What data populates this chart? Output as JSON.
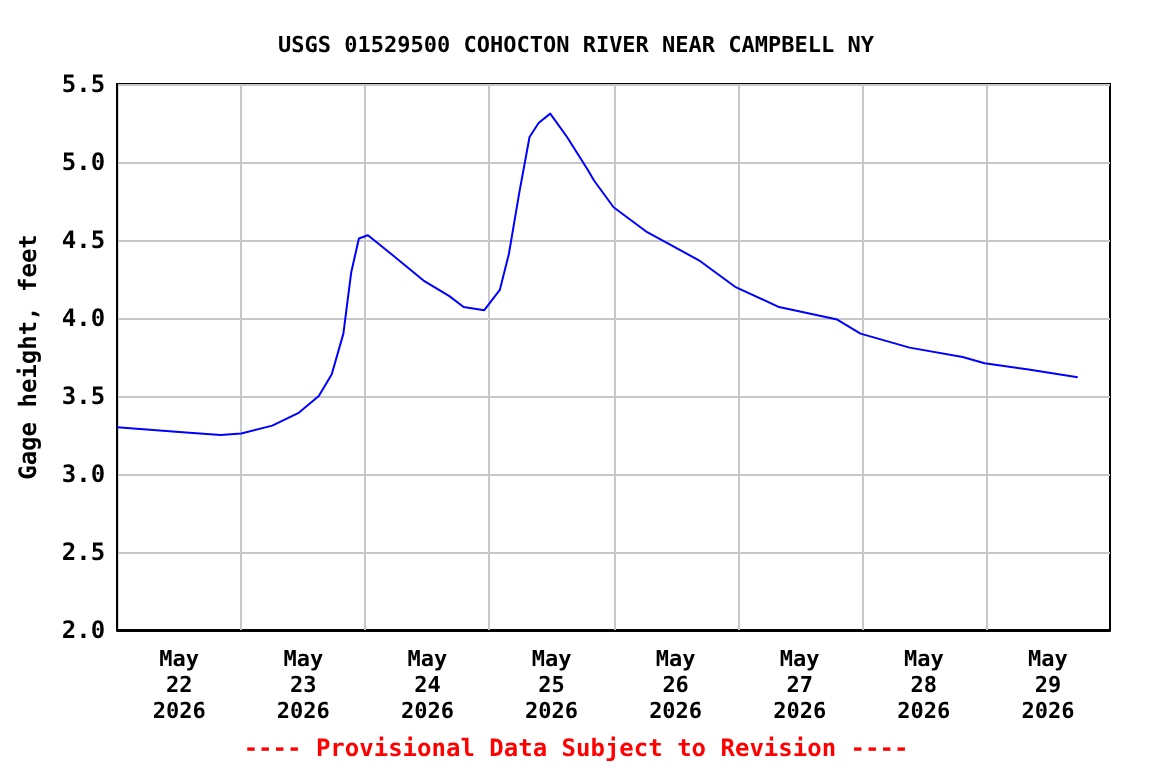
{
  "chart_data": {
    "type": "line",
    "title": "USGS 01529500 COHOCTON RIVER NEAR CAMPBELL NY",
    "ylabel": "Gage height, feet",
    "annotations": [
      "---- Provisional Data Subject to Revision ----"
    ],
    "x": [
      "2026-05-22T00:00",
      "2026-05-22T12:00",
      "2026-05-22T20:00",
      "2026-05-23T00:00",
      "2026-05-23T06:00",
      "2026-05-23T11:00",
      "2026-05-23T15:00",
      "2026-05-23T17:30",
      "2026-05-23T19:45",
      "2026-05-23T21:15",
      "2026-05-23T22:45",
      "2026-05-24T00:30",
      "2026-05-24T05:00",
      "2026-05-24T11:15",
      "2026-05-24T16:15",
      "2026-05-24T19:00",
      "2026-05-24T23:00",
      "2026-05-25T02:00",
      "2026-05-25T03:45",
      "2026-05-25T05:45",
      "2026-05-25T07:45",
      "2026-05-25T09:30",
      "2026-05-25T11:45",
      "2026-05-25T15:00",
      "2026-05-25T19:00",
      "2026-05-25T20:15",
      "2026-05-26T00:00",
      "2026-05-26T06:30",
      "2026-05-26T16:30",
      "2026-05-26T23:30",
      "2026-05-27T08:00",
      "2026-05-27T19:15",
      "2026-05-27T23:45",
      "2026-05-28T09:15",
      "2026-05-28T19:30",
      "2026-05-28T23:45",
      "2026-05-29T08:15",
      "2026-05-29T17:45"
    ],
    "series": [
      {
        "color": "#0000ff",
        "values": [
          3.3,
          3.27,
          3.25,
          3.26,
          3.31,
          3.39,
          3.5,
          3.64,
          3.9,
          4.29,
          4.51,
          4.53,
          4.41,
          4.24,
          4.14,
          4.07,
          4.05,
          4.18,
          4.41,
          4.8,
          5.16,
          5.25,
          5.31,
          5.16,
          4.95,
          4.88,
          4.71,
          4.55,
          4.37,
          4.2,
          4.07,
          3.99,
          3.9,
          3.81,
          3.75,
          3.71,
          3.67,
          3.62
        ]
      }
    ],
    "xlim": [
      "2026-05-22T00:00",
      "2026-05-30T00:00"
    ],
    "xticks": [
      {
        "value": "2026-05-22T12:00",
        "label": "May\n22\n2026"
      },
      {
        "value": "2026-05-23T00:00",
        "label": null
      },
      {
        "value": "2026-05-23T12:00",
        "label": "May\n23\n2026"
      },
      {
        "value": "2026-05-24T00:00",
        "label": null
      },
      {
        "value": "2026-05-24T12:00",
        "label": "May\n24\n2026"
      },
      {
        "value": "2026-05-25T00:00",
        "label": null
      },
      {
        "value": "2026-05-25T12:00",
        "label": "May\n25\n2026"
      },
      {
        "value": "2026-05-26T00:00",
        "label": null
      },
      {
        "value": "2026-05-26T12:00",
        "label": "May\n26\n2026"
      },
      {
        "value": "2026-05-27T00:00",
        "label": null
      },
      {
        "value": "2026-05-27T12:00",
        "label": "May\n27\n2026"
      },
      {
        "value": "2026-05-28T00:00",
        "label": null
      },
      {
        "value": "2026-05-28T12:00",
        "label": "May\n28\n2026"
      },
      {
        "value": "2026-05-29T00:00",
        "label": null
      },
      {
        "value": "2026-05-29T12:00",
        "label": "May\n29\n2026"
      }
    ],
    "ylim": [
      2.0,
      5.5
    ],
    "yticks": [
      {
        "value": 2.0,
        "label": "2.0"
      },
      {
        "value": 2.5,
        "label": "2.5"
      },
      {
        "value": 3.0,
        "label": "3.0"
      },
      {
        "value": 3.5,
        "label": "3.5"
      },
      {
        "value": 4.0,
        "label": "4.0"
      },
      {
        "value": 4.5,
        "label": "4.5"
      },
      {
        "value": 5.0,
        "label": "5.0"
      },
      {
        "value": 5.5,
        "label": "5.5"
      }
    ],
    "grid": true,
    "marker": "none",
    "line_style": "solid"
  }
}
